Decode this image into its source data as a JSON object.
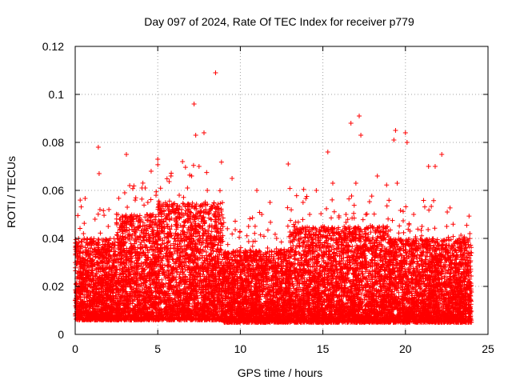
{
  "chart_data": {
    "type": "scatter",
    "title": "Day 097 of 2024, Rate Of TEC Index for receiver p779",
    "xlabel": "GPS time / hours",
    "ylabel": "ROTI / TECUs",
    "xlim": [
      0,
      25
    ],
    "ylim": [
      0,
      0.12
    ],
    "xticks": [
      0,
      5,
      10,
      15,
      20,
      25
    ],
    "xtick_labels": [
      "0",
      "5",
      "10",
      "15",
      "20",
      "25"
    ],
    "yticks": [
      0,
      0.02,
      0.04,
      0.06,
      0.08,
      0.1,
      0.12
    ],
    "ytick_labels": [
      "0",
      "0.02",
      "0.04",
      "0.06",
      "0.08",
      "0.1",
      "0.12"
    ],
    "grid": true,
    "marker": "+",
    "color": "#ff0000",
    "series": [
      {
        "name": "ROTI",
        "points": [
          [
            0.1,
            0.015
          ],
          [
            0.3,
            0.028
          ],
          [
            0.5,
            0.042
          ],
          [
            0.6,
            0.01
          ],
          [
            0.8,
            0.035
          ],
          [
            1.0,
            0.022
          ],
          [
            1.2,
            0.048
          ],
          [
            1.4,
            0.078
          ],
          [
            1.45,
            0.067
          ],
          [
            1.5,
            0.052
          ],
          [
            1.8,
            0.03
          ],
          [
            2.0,
            0.045
          ],
          [
            2.3,
            0.033
          ],
          [
            2.6,
            0.04
          ],
          [
            2.9,
            0.02
          ],
          [
            3.0,
            0.059
          ],
          [
            3.1,
            0.075
          ],
          [
            3.3,
            0.062
          ],
          [
            3.5,
            0.037
          ],
          [
            3.8,
            0.026
          ],
          [
            4.1,
            0.045
          ],
          [
            4.4,
            0.055
          ],
          [
            4.6,
            0.068
          ],
          [
            4.8,
            0.032
          ],
          [
            5.0,
            0.073
          ],
          [
            5.2,
            0.05
          ],
          [
            5.5,
            0.024
          ],
          [
            5.8,
            0.066
          ],
          [
            6.0,
            0.04
          ],
          [
            6.3,
            0.058
          ],
          [
            6.5,
            0.072
          ],
          [
            6.8,
            0.061
          ],
          [
            7.0,
            0.045
          ],
          [
            7.2,
            0.096
          ],
          [
            7.3,
            0.083
          ],
          [
            7.5,
            0.07
          ],
          [
            7.8,
            0.084
          ],
          [
            8.0,
            0.06
          ],
          [
            8.2,
            0.052
          ],
          [
            8.5,
            0.109
          ],
          [
            8.8,
            0.04
          ],
          [
            9.2,
            0.028
          ],
          [
            9.5,
            0.065
          ],
          [
            9.8,
            0.035
          ],
          [
            10.2,
            0.02
          ],
          [
            10.5,
            0.045
          ],
          [
            11.0,
            0.06
          ],
          [
            11.3,
            0.05
          ],
          [
            11.8,
            0.055
          ],
          [
            12.2,
            0.04
          ],
          [
            12.6,
            0.03
          ],
          [
            12.9,
            0.071
          ],
          [
            13.3,
            0.045
          ],
          [
            13.8,
            0.055
          ],
          [
            14.2,
            0.05
          ],
          [
            14.6,
            0.06
          ],
          [
            15.0,
            0.045
          ],
          [
            15.3,
            0.076
          ],
          [
            15.6,
            0.063
          ],
          [
            16.0,
            0.04
          ],
          [
            16.4,
            0.05
          ],
          [
            16.7,
            0.088
          ],
          [
            17.0,
            0.063
          ],
          [
            17.2,
            0.091
          ],
          [
            17.3,
            0.083
          ],
          [
            17.6,
            0.05
          ],
          [
            18.0,
            0.045
          ],
          [
            18.3,
            0.066
          ],
          [
            18.7,
            0.04
          ],
          [
            19.0,
            0.035
          ],
          [
            19.3,
            0.081
          ],
          [
            19.4,
            0.085
          ],
          [
            19.5,
            0.063
          ],
          [
            20.0,
            0.084
          ],
          [
            20.1,
            0.08
          ],
          [
            20.5,
            0.05
          ],
          [
            21.0,
            0.045
          ],
          [
            21.4,
            0.07
          ],
          [
            21.8,
            0.07
          ],
          [
            22.2,
            0.075
          ],
          [
            22.5,
            0.045
          ],
          [
            23.0,
            0.035
          ],
          [
            23.5,
            0.04
          ],
          [
            23.8,
            0.03
          ],
          [
            23.9,
            0.042
          ]
        ],
        "dense_band": {
          "segments": [
            {
              "x": [
                0,
                2.5
              ],
              "low": 0.006,
              "typical_high": 0.04
            },
            {
              "x": [
                2.5,
                5
              ],
              "low": 0.006,
              "typical_high": 0.05
            },
            {
              "x": [
                5,
                9
              ],
              "low": 0.006,
              "typical_high": 0.055
            },
            {
              "x": [
                9,
                13
              ],
              "low": 0.005,
              "typical_high": 0.035
            },
            {
              "x": [
                13,
                15
              ],
              "low": 0.005,
              "typical_high": 0.045
            },
            {
              "x": [
                15,
                19
              ],
              "low": 0.005,
              "typical_high": 0.045
            },
            {
              "x": [
                19,
                24
              ],
              "low": 0.005,
              "typical_high": 0.04
            }
          ],
          "samples_per_hour": 500
        }
      }
    ]
  }
}
